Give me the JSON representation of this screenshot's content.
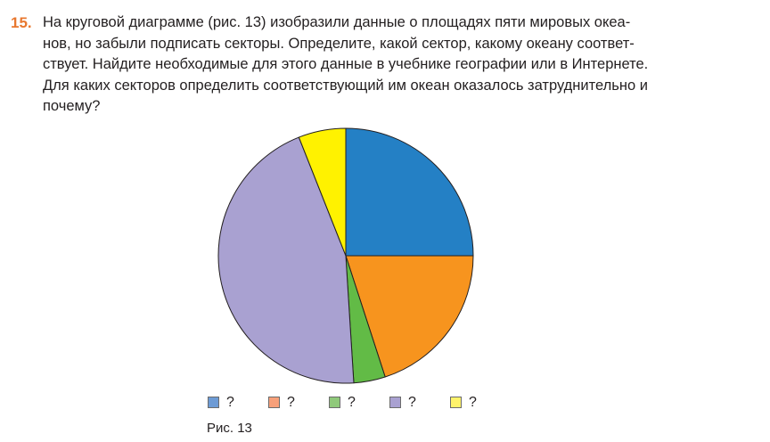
{
  "problem": {
    "number": "15.",
    "lines": [
      "На круговой диаграмме (рис. 13) изобразили данные о площадях пяти мировых океа-",
      "нов, но забыли подписать секторы. Определите, какой сектор, какому океану соответ-",
      "ствует. Найдите необходимые для этого данные в учебнике географии или в Интернете.",
      "Для каких секторов определить соответствующий им океан оказалось затруднительно и",
      "почему?"
    ]
  },
  "figure": {
    "caption": "Рис. 13"
  },
  "chart_data": {
    "type": "pie",
    "title": "",
    "start_angle": "12 o'clock",
    "direction": "clockwise",
    "slices": [
      {
        "label": "?",
        "value": 25.0,
        "color": "#2480c5"
      },
      {
        "label": "?",
        "value": 20.0,
        "color": "#f7941e"
      },
      {
        "label": "?",
        "value": 4.0,
        "color": "#62bb46"
      },
      {
        "label": "?",
        "value": 45.0,
        "color": "#a9a1d1"
      },
      {
        "label": "?",
        "value": 6.0,
        "color": "#fff200"
      }
    ],
    "legend": {
      "placement": "bottom",
      "items": [
        {
          "label": "?",
          "color": "#6d9bd5"
        },
        {
          "label": "?",
          "color": "#f7a07a"
        },
        {
          "label": "?",
          "color": "#8fc97a"
        },
        {
          "label": "?",
          "color": "#a9a1d1"
        },
        {
          "label": "?",
          "color": "#fff36b"
        }
      ]
    }
  }
}
